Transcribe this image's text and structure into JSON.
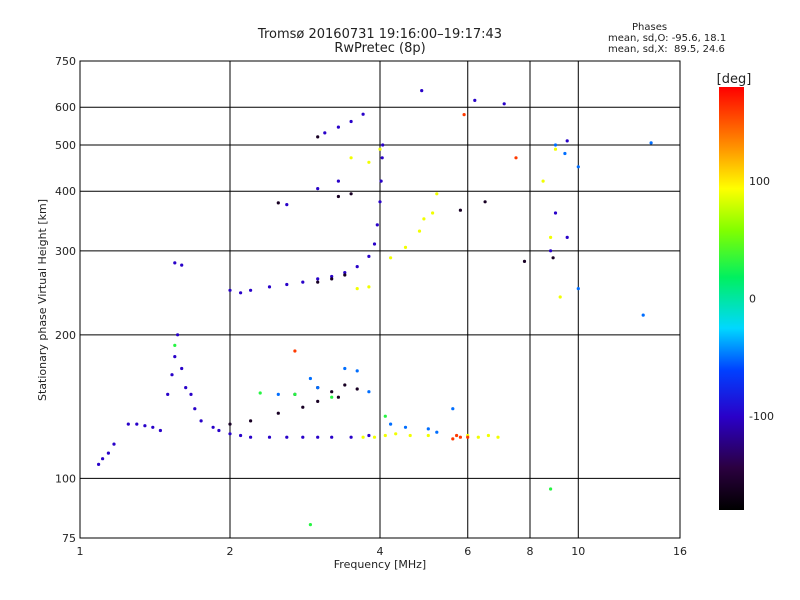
{
  "header": {
    "title": "Tromsø 20160731 19:16:00–19:17:43",
    "subtitle": "RwPretec (8p)",
    "stats_title": "Phases",
    "stats_o": "mean, sd,O: -95.6, 18.1",
    "stats_x": "mean, sd,X:  89.5, 24.6"
  },
  "chart_data": {
    "type": "scatter",
    "xlabel": "Frequency [MHz]",
    "ylabel": "Stationary phase Virtual Height [km]",
    "x_scale": "log",
    "y_scale": "log",
    "xlim": [
      1,
      16
    ],
    "ylim": [
      75,
      750
    ],
    "x_ticks": [
      1,
      2,
      4,
      6,
      8,
      10,
      16
    ],
    "y_ticks": [
      75,
      100,
      200,
      300,
      400,
      500,
      600,
      750
    ],
    "grid": true,
    "colorbar": {
      "label": "[deg]",
      "range": [
        -180,
        180
      ],
      "ticks": [
        100,
        0,
        -100
      ]
    },
    "series": [
      {
        "color_value": -100,
        "points": [
          [
            1.09,
            107
          ],
          [
            1.11,
            110
          ],
          [
            1.14,
            113
          ],
          [
            1.17,
            118
          ],
          [
            1.25,
            130
          ],
          [
            1.3,
            130
          ],
          [
            1.35,
            129
          ],
          [
            1.4,
            128
          ],
          [
            1.45,
            126
          ],
          [
            1.5,
            150
          ],
          [
            1.53,
            165
          ],
          [
            1.55,
            180
          ],
          [
            1.57,
            200
          ],
          [
            1.6,
            170
          ],
          [
            1.63,
            155
          ],
          [
            1.67,
            150
          ],
          [
            1.7,
            140
          ],
          [
            1.75,
            132
          ],
          [
            1.85,
            128
          ],
          [
            1.9,
            126
          ],
          [
            2.0,
            124
          ],
          [
            2.1,
            123
          ],
          [
            2.2,
            122
          ],
          [
            2.4,
            122
          ],
          [
            2.6,
            122
          ],
          [
            2.8,
            122
          ],
          [
            3.0,
            122
          ],
          [
            3.2,
            122
          ],
          [
            3.5,
            122
          ],
          [
            3.8,
            123
          ],
          [
            1.55,
            283
          ],
          [
            1.6,
            280
          ],
          [
            2.0,
            248
          ],
          [
            2.1,
            245
          ],
          [
            2.2,
            248
          ],
          [
            2.4,
            252
          ],
          [
            2.6,
            255
          ],
          [
            2.8,
            258
          ],
          [
            3.0,
            262
          ],
          [
            3.2,
            265
          ],
          [
            3.4,
            270
          ],
          [
            3.6,
            278
          ],
          [
            3.8,
            292
          ],
          [
            3.9,
            310
          ],
          [
            3.95,
            340
          ],
          [
            4.0,
            380
          ],
          [
            4.02,
            420
          ],
          [
            4.04,
            470
          ],
          [
            4.05,
            500
          ],
          [
            3.1,
            530
          ],
          [
            3.3,
            545
          ],
          [
            3.5,
            560
          ],
          [
            3.7,
            580
          ],
          [
            2.6,
            375
          ],
          [
            3.0,
            405
          ],
          [
            3.3,
            420
          ],
          [
            4.85,
            650
          ],
          [
            6.2,
            620
          ],
          [
            7.1,
            610
          ],
          [
            9.5,
            510
          ],
          [
            9.0,
            360
          ],
          [
            9.5,
            320
          ],
          [
            8.8,
            300
          ]
        ]
      },
      {
        "color_value": -160,
        "points": [
          [
            2.0,
            130
          ],
          [
            2.2,
            132
          ],
          [
            2.5,
            137
          ],
          [
            2.8,
            141
          ],
          [
            3.0,
            145
          ],
          [
            3.3,
            148
          ],
          [
            2.7,
            150
          ],
          [
            3.0,
            155
          ],
          [
            3.2,
            152
          ],
          [
            3.4,
            157
          ],
          [
            3.6,
            154
          ],
          [
            3.0,
            258
          ],
          [
            3.2,
            262
          ],
          [
            3.4,
            267
          ],
          [
            3.3,
            390
          ],
          [
            3.5,
            395
          ],
          [
            2.5,
            378
          ],
          [
            3.0,
            520
          ],
          [
            5.8,
            365
          ],
          [
            6.5,
            380
          ],
          [
            7.8,
            285
          ],
          [
            8.9,
            290
          ]
        ]
      },
      {
        "color_value": -50,
        "points": [
          [
            2.5,
            150
          ],
          [
            2.9,
            162
          ],
          [
            3.0,
            155
          ],
          [
            3.4,
            170
          ],
          [
            3.6,
            168
          ],
          [
            3.8,
            152
          ],
          [
            4.2,
            130
          ],
          [
            4.5,
            128
          ],
          [
            5.0,
            127
          ],
          [
            5.2,
            125
          ],
          [
            5.6,
            140
          ],
          [
            9.0,
            500
          ],
          [
            9.4,
            480
          ],
          [
            10.0,
            450
          ],
          [
            10.0,
            250
          ],
          [
            13.5,
            220
          ],
          [
            14.0,
            505
          ]
        ]
      },
      {
        "color_value": 90,
        "points": [
          [
            3.7,
            122
          ],
          [
            3.9,
            122
          ],
          [
            4.1,
            123
          ],
          [
            4.3,
            124
          ],
          [
            4.6,
            123
          ],
          [
            5.0,
            123
          ],
          [
            6.0,
            123
          ],
          [
            6.3,
            122
          ],
          [
            6.6,
            123
          ],
          [
            6.9,
            122
          ],
          [
            3.5,
            470
          ],
          [
            3.8,
            460
          ],
          [
            4.0,
            490
          ],
          [
            4.2,
            290
          ],
          [
            4.5,
            305
          ],
          [
            4.8,
            330
          ],
          [
            4.9,
            350
          ],
          [
            5.1,
            360
          ],
          [
            5.2,
            395
          ],
          [
            3.6,
            250
          ],
          [
            3.8,
            252
          ],
          [
            8.5,
            420
          ],
          [
            9.0,
            490
          ],
          [
            9.2,
            240
          ],
          [
            8.8,
            320
          ]
        ]
      },
      {
        "color_value": 160,
        "points": [
          [
            5.6,
            121
          ],
          [
            5.7,
            123
          ],
          [
            5.8,
            122
          ],
          [
            6.0,
            122
          ],
          [
            5.9,
            579
          ],
          [
            7.5,
            470
          ],
          [
            2.7,
            185
          ]
        ]
      },
      {
        "color_value": 30,
        "points": [
          [
            2.9,
            80
          ],
          [
            1.55,
            190
          ],
          [
            2.3,
            151
          ],
          [
            2.7,
            150
          ],
          [
            3.2,
            148
          ],
          [
            4.1,
            135
          ],
          [
            8.8,
            95
          ]
        ]
      }
    ]
  }
}
